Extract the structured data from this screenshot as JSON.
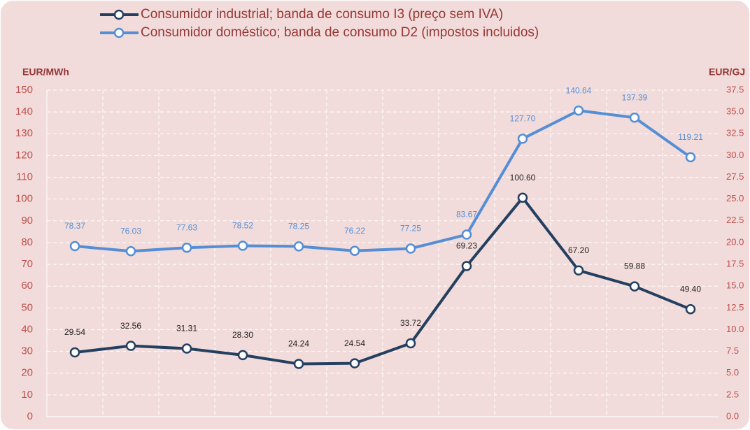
{
  "chart_data": {
    "type": "line",
    "categories": [
      null,
      null,
      null,
      null,
      null,
      null,
      null,
      null,
      null,
      null,
      null,
      null
    ],
    "y_label": "EUR/MWh",
    "y2_label": "EUR/GJ",
    "series": [
      {
        "name": "Consumidor industrial; banda de consumo I3 (preço sem IVA)",
        "color": "#243f60",
        "values": [
          29.54,
          32.56,
          31.31,
          28.3,
          24.24,
          24.54,
          33.72,
          69.23,
          100.6,
          67.2,
          59.88,
          49.4
        ],
        "value_labels": [
          "29.54",
          "32.56",
          "31.31",
          "28.30",
          "24.24",
          "24.54",
          "33.72",
          "69.23",
          "100.60",
          "67.20",
          "59.88",
          "49.40"
        ]
      },
      {
        "name": "Consumidor doméstico; banda de consumo D2 (impostos incluidos)",
        "color": "#558ed5",
        "values": [
          78.37,
          76.03,
          77.63,
          78.52,
          78.25,
          76.22,
          77.25,
          83.67,
          127.7,
          140.64,
          137.39,
          119.21
        ],
        "value_labels": [
          "78.37",
          "76.03",
          "77.63",
          "78.52",
          "78.25",
          "76.22",
          "77.25",
          "83.67",
          "127.70",
          "140.64",
          "137.39",
          "119.21"
        ]
      }
    ],
    "ylim": [
      0,
      150
    ],
    "yticks": [
      0,
      10,
      20,
      30,
      40,
      50,
      60,
      70,
      80,
      90,
      100,
      110,
      120,
      130,
      140,
      150
    ],
    "y2lim": [
      0,
      37.5
    ],
    "y2ticks": [
      {
        "value": 0,
        "label": "0.0"
      },
      2.5,
      {
        "value": 5,
        "label": "5.0"
      },
      7.5,
      {
        "value": 10,
        "label": "10.0"
      },
      12.5,
      {
        "value": 15,
        "label": "15.0"
      },
      17.5,
      {
        "value": 20,
        "label": "20.0"
      },
      22.5,
      {
        "value": 25,
        "label": "25.0"
      },
      27.5,
      {
        "value": 30,
        "label": "30.0"
      },
      32.5,
      {
        "value": 35,
        "label": "35.0"
      },
      37.5
    ],
    "grid": true,
    "legend": "top"
  }
}
